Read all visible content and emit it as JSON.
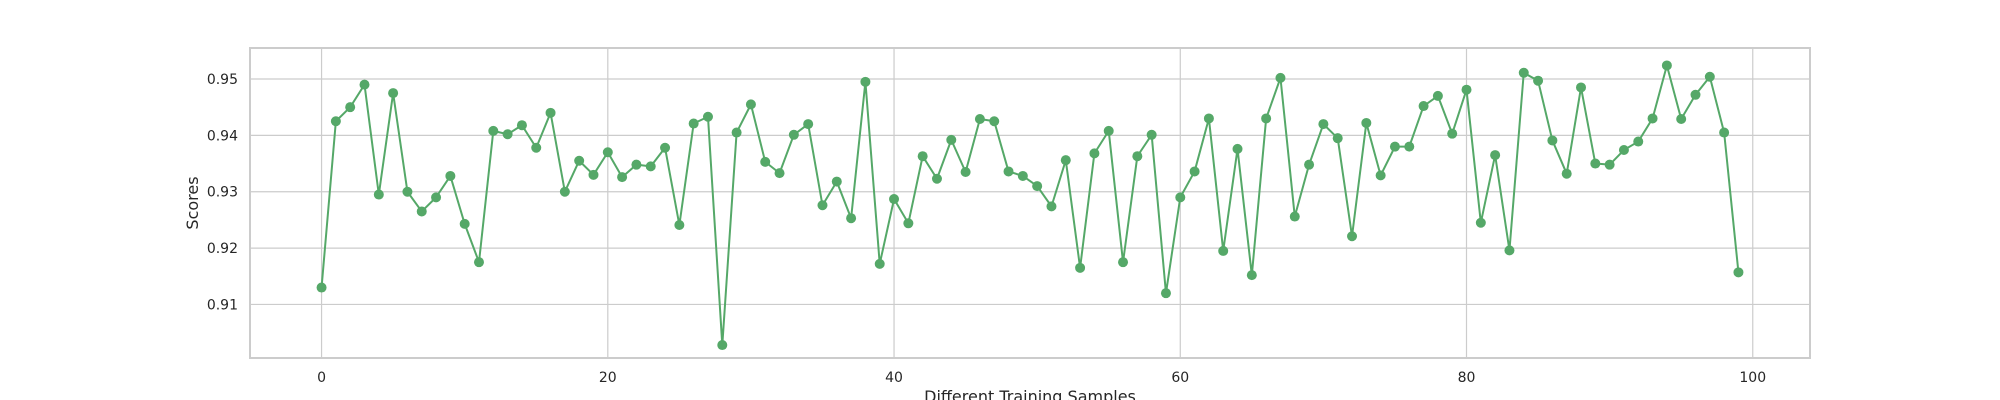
{
  "chart_data": {
    "type": "line",
    "title": "",
    "xlabel": "Different Training Samples",
    "ylabel": "Scores",
    "xlim": [
      -5,
      104
    ],
    "ylim": [
      0.9005,
      0.9555
    ],
    "xticks": [
      0,
      20,
      40,
      60,
      80,
      100
    ],
    "xtick_labels": [
      "0",
      "20",
      "40",
      "60",
      "80",
      "100"
    ],
    "yticks": [
      0.91,
      0.92,
      0.93,
      0.94,
      0.95
    ],
    "ytick_labels": [
      "0.91",
      "0.92",
      "0.93",
      "0.94",
      "0.95"
    ],
    "grid": true,
    "legend": "none",
    "series": [
      {
        "color": "#55a868",
        "marker": "circle",
        "x": [
          0,
          1,
          2,
          3,
          4,
          5,
          6,
          7,
          8,
          9,
          10,
          11,
          12,
          13,
          14,
          15,
          16,
          17,
          18,
          19,
          20,
          21,
          22,
          23,
          24,
          25,
          26,
          27,
          28,
          29,
          30,
          31,
          32,
          33,
          34,
          35,
          36,
          37,
          38,
          39,
          40,
          41,
          42,
          43,
          44,
          45,
          46,
          47,
          48,
          49,
          50,
          51,
          52,
          53,
          54,
          55,
          56,
          57,
          58,
          59,
          60,
          61,
          62,
          63,
          64,
          65,
          66,
          67,
          68,
          69,
          70,
          71,
          72,
          73,
          74,
          75,
          76,
          77,
          78,
          79,
          80,
          81,
          82,
          83,
          84,
          85,
          86,
          87,
          88,
          89,
          90,
          91,
          92,
          93,
          94,
          95,
          96,
          97,
          98,
          99
        ],
        "values": [
          0.913,
          0.9425,
          0.945,
          0.949,
          0.9295,
          0.9475,
          0.93,
          0.9265,
          0.929,
          0.9328,
          0.9243,
          0.9175,
          0.9408,
          0.9402,
          0.9418,
          0.9378,
          0.944,
          0.93,
          0.9355,
          0.933,
          0.937,
          0.9326,
          0.9348,
          0.9345,
          0.9378,
          0.9241,
          0.9421,
          0.9433,
          0.9028,
          0.9405,
          0.9455,
          0.9353,
          0.9333,
          0.9401,
          0.942,
          0.9276,
          0.9318,
          0.9253,
          0.9495,
          0.9172,
          0.9287,
          0.9244,
          0.9363,
          0.9323,
          0.9392,
          0.9335,
          0.9429,
          0.9425,
          0.9336,
          0.9328,
          0.931,
          0.9274,
          0.9356,
          0.9165,
          0.9368,
          0.9408,
          0.9175,
          0.9363,
          0.9401,
          0.912,
          0.929,
          0.9336,
          0.943,
          0.9195,
          0.9376,
          0.9152,
          0.943,
          0.9502,
          0.9256,
          0.9348,
          0.942,
          0.9395,
          0.9221,
          0.9422,
          0.9329,
          0.938,
          0.938,
          0.9452,
          0.947,
          0.9403,
          0.9481,
          0.9245,
          0.9365,
          0.9196,
          0.9511,
          0.9497,
          0.9391,
          0.9332,
          0.9485,
          0.935,
          0.9348,
          0.9374,
          0.9389,
          0.943,
          0.9524,
          0.9429,
          0.9472,
          0.9504,
          0.9405,
          0.9157
        ]
      }
    ]
  }
}
